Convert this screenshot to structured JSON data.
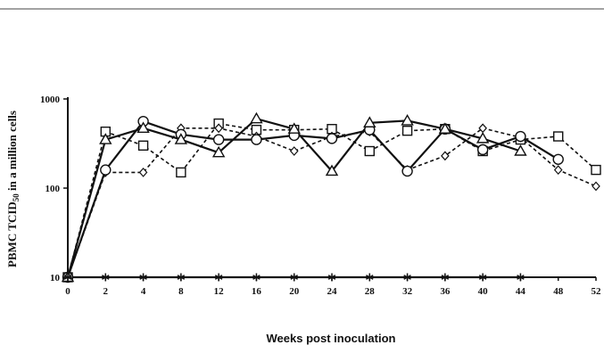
{
  "chart_data": {
    "type": "line",
    "title": "",
    "xlabel": "Weeks post inoculation",
    "ylabel": "PBMC TCID50 in a million cells",
    "ylabel_parts": {
      "main": "PBMC TCID",
      "sub": "50",
      "rest": " in a million cells"
    },
    "y_scale": "log",
    "ylim": [
      10,
      1000
    ],
    "y_ticks": [
      "10",
      "100",
      "1000"
    ],
    "x_ticks": [
      "0",
      "2",
      "4",
      "8",
      "12",
      "16",
      "20",
      "24",
      "28",
      "32",
      "36",
      "40",
      "44",
      "48",
      "52"
    ],
    "x_tick_values": [
      0,
      2,
      4,
      8,
      12,
      16,
      20,
      24,
      28,
      32,
      36,
      40,
      44,
      48,
      52
    ],
    "grid": false,
    "legend": false,
    "series": [
      {
        "marker": "square",
        "line_style": "dashed",
        "x": [
          0,
          2,
          4,
          8,
          12,
          16,
          20,
          24,
          28,
          32,
          36,
          40,
          44,
          48,
          52
        ],
        "y": [
          10,
          430,
          300,
          150,
          530,
          450,
          450,
          460,
          260,
          440,
          460,
          260,
          350,
          380,
          160
        ]
      },
      {
        "marker": "diamond",
        "line_style": "dashed",
        "x": [
          0,
          2,
          4,
          8,
          12,
          16,
          20,
          24,
          28,
          32,
          36,
          40,
          44,
          48,
          52
        ],
        "y": [
          10,
          150,
          150,
          470,
          470,
          380,
          260,
          380,
          430,
          160,
          230,
          470,
          370,
          160,
          105
        ]
      },
      {
        "marker": "circle",
        "line_style": "solid",
        "x": [
          0,
          2,
          4,
          8,
          12,
          16,
          20,
          24,
          28,
          32,
          36
        ],
        "y": [
          10,
          160,
          560,
          400,
          350,
          350,
          390,
          360,
          450,
          155,
          460
        ]
      },
      {
        "marker": "circle",
        "line_style": "solid",
        "x": [
          36,
          40,
          44,
          48
        ],
        "y": [
          460,
          270,
          380,
          210
        ]
      },
      {
        "marker": "triangle",
        "line_style": "solid",
        "x": [
          0,
          2,
          4,
          8,
          12,
          16,
          20,
          24,
          28,
          32,
          36,
          40,
          44
        ],
        "y": [
          10,
          350,
          470,
          350,
          250,
          600,
          460,
          155,
          540,
          570,
          460,
          360,
          260
        ]
      },
      {
        "marker": "asterisk",
        "line_style": "solid",
        "x": [
          0,
          2,
          4,
          8,
          12,
          16,
          20,
          24,
          28,
          32,
          36,
          40,
          44
        ],
        "y": [
          10,
          10,
          10,
          10,
          10,
          10,
          10,
          10,
          10,
          10,
          10,
          10,
          10
        ]
      }
    ]
  }
}
